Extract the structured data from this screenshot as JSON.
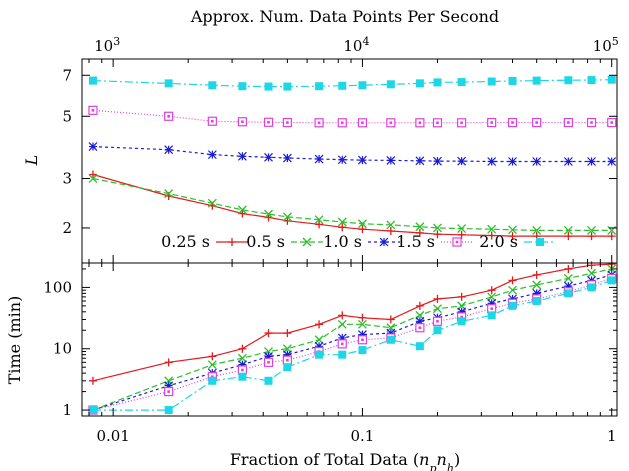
{
  "chart_data": [
    {
      "type": "line",
      "panel": "top",
      "title": "Approx. Num. Data Points Per Second",
      "ylabel": "L",
      "xscale": "log",
      "yscale": "log",
      "xlim": [
        0.0075,
        1.05
      ],
      "ylim": [
        1.5,
        8.0
      ],
      "top_axis": {
        "ticks": [
          {
            "value": 0.01,
            "label": "10",
            "exp": "3"
          },
          {
            "value": 0.1,
            "label": "10",
            "exp": "4"
          },
          {
            "value": 1.0,
            "label": "10",
            "exp": "5"
          }
        ]
      },
      "yticks": [
        {
          "value": 2,
          "label": "2"
        },
        {
          "value": 3,
          "label": "3"
        },
        {
          "value": 5,
          "label": "5"
        },
        {
          "value": 7,
          "label": "7"
        }
      ],
      "legend": {
        "placement": "bottom",
        "entries": [
          {
            "name": "0.25 s",
            "color": "#e41a1c",
            "marker": "plus"
          },
          {
            "name": "0.5 s",
            "color": "#2cbf2c",
            "marker": "cross"
          },
          {
            "name": "1.0 s",
            "color": "#1b1bd6",
            "marker": "star"
          },
          {
            "name": "1.5 s",
            "color": "#e040e0",
            "marker": "box"
          },
          {
            "name": "2.0 s",
            "color": "#1ed7e6",
            "marker": "filled-box"
          }
        ]
      },
      "series": [
        {
          "name": "0.25 s",
          "color": "#e41a1c",
          "marker": "plus",
          "dash": "",
          "x": [
            0.0083,
            0.0167,
            0.025,
            0.033,
            0.042,
            0.05,
            0.067,
            0.083,
            0.1,
            0.13,
            0.17,
            0.2,
            0.25,
            0.33,
            0.4,
            0.5,
            0.67,
            0.83,
            1.0
          ],
          "y": [
            3.1,
            2.6,
            2.4,
            2.25,
            2.18,
            2.12,
            2.06,
            2.01,
            1.98,
            1.95,
            1.92,
            1.9,
            1.89,
            1.88,
            1.87,
            1.87,
            1.87,
            1.87,
            1.87
          ]
        },
        {
          "name": "0.5 s",
          "color": "#2cbf2c",
          "marker": "cross",
          "dash": "6,3",
          "x": [
            0.0083,
            0.0167,
            0.025,
            0.033,
            0.042,
            0.05,
            0.067,
            0.083,
            0.1,
            0.13,
            0.17,
            0.2,
            0.25,
            0.33,
            0.4,
            0.5,
            0.67,
            0.83,
            1.0
          ],
          "y": [
            3.0,
            2.65,
            2.45,
            2.32,
            2.24,
            2.19,
            2.14,
            2.1,
            2.07,
            2.05,
            2.02,
            2.0,
            1.99,
            1.98,
            1.97,
            1.96,
            1.96,
            1.96,
            1.96
          ]
        },
        {
          "name": "1.0 s",
          "color": "#1b1bd6",
          "marker": "star",
          "dash": "3,3",
          "x": [
            0.0083,
            0.0167,
            0.025,
            0.033,
            0.042,
            0.05,
            0.067,
            0.083,
            0.1,
            0.13,
            0.17,
            0.2,
            0.25,
            0.33,
            0.4,
            0.5,
            0.67,
            0.83,
            1.0
          ],
          "y": [
            3.9,
            3.8,
            3.65,
            3.6,
            3.57,
            3.55,
            3.52,
            3.5,
            3.49,
            3.48,
            3.47,
            3.46,
            3.46,
            3.45,
            3.45,
            3.45,
            3.45,
            3.45,
            3.45
          ]
        },
        {
          "name": "1.5 s",
          "color": "#e040e0",
          "marker": "box",
          "dash": "1,2",
          "x": [
            0.0083,
            0.0167,
            0.025,
            0.033,
            0.042,
            0.05,
            0.067,
            0.083,
            0.1,
            0.13,
            0.17,
            0.2,
            0.25,
            0.33,
            0.4,
            0.5,
            0.67,
            0.83,
            1.0
          ],
          "y": [
            5.25,
            5.0,
            4.8,
            4.78,
            4.76,
            4.75,
            4.74,
            4.74,
            4.74,
            4.74,
            4.74,
            4.74,
            4.74,
            4.75,
            4.75,
            4.75,
            4.75,
            4.75,
            4.75
          ]
        },
        {
          "name": "2.0 s",
          "color": "#1ed7e6",
          "marker": "filled-box",
          "dash": "8,3,2,3",
          "x": [
            0.0083,
            0.0167,
            0.025,
            0.033,
            0.042,
            0.05,
            0.067,
            0.083,
            0.1,
            0.13,
            0.17,
            0.2,
            0.25,
            0.33,
            0.4,
            0.5,
            0.67,
            0.83,
            1.0
          ],
          "y": [
            6.7,
            6.55,
            6.45,
            6.4,
            6.38,
            6.38,
            6.4,
            6.42,
            6.45,
            6.5,
            6.55,
            6.6,
            6.62,
            6.65,
            6.68,
            6.7,
            6.72,
            6.73,
            6.75
          ]
        }
      ]
    },
    {
      "type": "line",
      "panel": "bottom",
      "xlabel": "Fraction of Total Data (",
      "xlabel_var1": "n",
      "xlabel_sub1": "p",
      "xlabel_var2": "n",
      "xlabel_sub2": "h",
      "xlabel_end": ")",
      "ylabel": "Time (min)",
      "xscale": "log",
      "yscale": "log",
      "xlim": [
        0.0075,
        1.05
      ],
      "ylim": [
        0.8,
        250
      ],
      "xticks": [
        {
          "value": 0.01,
          "label": "0.01"
        },
        {
          "value": 0.1,
          "label": "0.1"
        },
        {
          "value": 1,
          "label": "1"
        }
      ],
      "yticks": [
        {
          "value": 1,
          "label": "1"
        },
        {
          "value": 10,
          "label": "10"
        },
        {
          "value": 100,
          "label": "100"
        }
      ],
      "series": [
        {
          "name": "0.25 s",
          "color": "#e41a1c",
          "marker": "plus",
          "dash": "",
          "x": [
            0.0083,
            0.0167,
            0.025,
            0.033,
            0.042,
            0.05,
            0.067,
            0.083,
            0.1,
            0.13,
            0.17,
            0.2,
            0.25,
            0.33,
            0.4,
            0.5,
            0.67,
            0.83,
            1.0
          ],
          "y": [
            3,
            6,
            7.5,
            10,
            18,
            18,
            25,
            35,
            32,
            30,
            50,
            65,
            70,
            90,
            130,
            160,
            200,
            230,
            240
          ]
        },
        {
          "name": "0.5 s",
          "color": "#2cbf2c",
          "marker": "cross",
          "dash": "6,3",
          "x": [
            0.0083,
            0.0167,
            0.025,
            0.033,
            0.042,
            0.05,
            0.067,
            0.083,
            0.1,
            0.13,
            0.17,
            0.2,
            0.25,
            0.33,
            0.4,
            0.5,
            0.67,
            0.83,
            1.0
          ],
          "y": [
            1,
            3,
            5.5,
            7,
            9,
            10,
            14,
            25,
            25,
            22,
            35,
            45,
            50,
            70,
            90,
            110,
            140,
            170,
            200
          ]
        },
        {
          "name": "1.0 s",
          "color": "#1b1bd6",
          "marker": "star",
          "dash": "3,3",
          "x": [
            0.0083,
            0.0167,
            0.025,
            0.033,
            0.042,
            0.05,
            0.067,
            0.083,
            0.1,
            0.13,
            0.17,
            0.2,
            0.25,
            0.33,
            0.4,
            0.5,
            0.67,
            0.83,
            1.0
          ],
          "y": [
            1,
            2.5,
            4,
            5.5,
            7.5,
            8,
            11,
            15,
            17,
            18,
            28,
            32,
            40,
            55,
            65,
            80,
            105,
            130,
            160
          ]
        },
        {
          "name": "1.5 s",
          "color": "#e040e0",
          "marker": "box",
          "dash": "1,2",
          "x": [
            0.0083,
            0.0167,
            0.025,
            0.033,
            0.042,
            0.05,
            0.067,
            0.083,
            0.1,
            0.13,
            0.17,
            0.2,
            0.25,
            0.33,
            0.4,
            0.5,
            0.67,
            0.83,
            1.0
          ],
          "y": [
            1,
            2,
            3.5,
            4.5,
            6,
            6.5,
            9,
            12,
            14,
            15,
            22,
            28,
            33,
            45,
            55,
            65,
            85,
            110,
            140
          ]
        },
        {
          "name": "2.0 s",
          "color": "#1ed7e6",
          "marker": "filled-box",
          "dash": "8,3,2,3",
          "x": [
            0.0083,
            0.0167,
            0.025,
            0.033,
            0.042,
            0.05,
            0.067,
            0.083,
            0.1,
            0.13,
            0.17,
            0.2,
            0.25,
            0.33,
            0.4,
            0.5,
            0.67,
            0.83,
            1.0
          ],
          "y": [
            1,
            1,
            3,
            3.5,
            3,
            5,
            8,
            8,
            9.5,
            14,
            11,
            20,
            28,
            35,
            50,
            60,
            80,
            100,
            130
          ]
        }
      ]
    }
  ]
}
